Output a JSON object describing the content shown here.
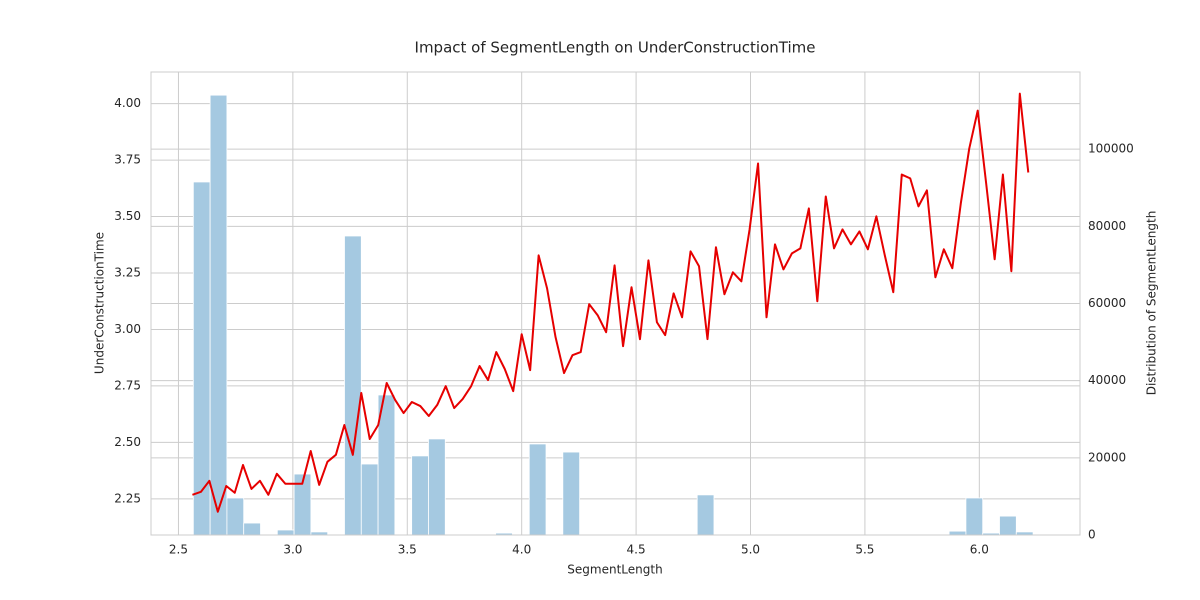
{
  "chart_data": [
    {
      "type": "line",
      "title": "Impact of SegmentLength on UnderConstructionTime",
      "x_label": "SegmentLength",
      "y_label": "UnderConstructionTime",
      "color": "#e60000",
      "grid": true,
      "xlim": [
        2.38,
        6.44
      ],
      "xticks": [
        {
          "value": 2.5,
          "label": "2.5"
        },
        {
          "value": 3.0,
          "label": "3.0"
        },
        {
          "value": 3.5,
          "label": "3.5"
        },
        {
          "value": 4.0,
          "label": "4.0"
        },
        {
          "value": 4.5,
          "label": "4.5"
        },
        {
          "value": 5.0,
          "label": "5.0"
        },
        {
          "value": 5.5,
          "label": "5.5"
        },
        {
          "value": 6.0,
          "label": "6.0"
        }
      ],
      "ylim": [
        2.09,
        4.14
      ],
      "yticks": [
        2.25,
        {
          "value": 2.5,
          "label": "2.50"
        },
        2.75,
        {
          "value": 3.0,
          "label": "3.00"
        },
        3.25,
        {
          "value": 3.5,
          "label": "3.50"
        },
        3.75,
        {
          "value": 4.0,
          "label": "4.00"
        }
      ],
      "x": [
        2.561,
        2.598,
        2.635,
        2.672,
        2.709,
        2.746,
        2.782,
        2.819,
        2.856,
        2.893,
        2.93,
        2.967,
        3.004,
        3.041,
        3.078,
        3.115,
        3.151,
        3.188,
        3.225,
        3.262,
        3.299,
        3.336,
        3.373,
        3.41,
        3.447,
        3.484,
        3.52,
        3.557,
        3.594,
        3.631,
        3.668,
        3.705,
        3.742,
        3.779,
        3.816,
        3.853,
        3.889,
        3.926,
        3.963,
        4.0,
        4.037,
        4.074,
        4.111,
        4.148,
        4.185,
        4.222,
        4.258,
        4.295,
        4.332,
        4.369,
        4.406,
        4.443,
        4.48,
        4.517,
        4.554,
        4.591,
        4.627,
        4.664,
        4.701,
        4.738,
        4.775,
        4.812,
        4.849,
        4.886,
        4.923,
        4.96,
        4.996,
        5.033,
        5.07,
        5.107,
        5.144,
        5.181,
        5.218,
        5.255,
        5.292,
        5.329,
        5.365,
        5.402,
        5.439,
        5.476,
        5.513,
        5.55,
        5.587,
        5.624,
        5.661,
        5.698,
        5.734,
        5.771,
        5.808,
        5.845,
        5.882,
        5.919,
        5.956,
        5.993,
        6.03,
        6.067,
        6.103,
        6.14,
        6.177,
        6.214
      ],
      "values": [
        2.268,
        2.281,
        2.33,
        2.193,
        2.307,
        2.277,
        2.4,
        2.294,
        2.33,
        2.268,
        2.361,
        2.317,
        2.317,
        2.317,
        2.462,
        2.312,
        2.414,
        2.445,
        2.577,
        2.445,
        2.719,
        2.515,
        2.577,
        2.763,
        2.688,
        2.63,
        2.679,
        2.661,
        2.617,
        2.666,
        2.749,
        2.652,
        2.692,
        2.749,
        2.838,
        2.776,
        2.9,
        2.825,
        2.727,
        2.979,
        2.82,
        3.328,
        3.182,
        2.966,
        2.807,
        2.886,
        2.9,
        3.112,
        3.063,
        2.988,
        3.284,
        2.926,
        3.187,
        2.957,
        3.306,
        3.032,
        2.975,
        3.16,
        3.054,
        3.346,
        3.28,
        2.957,
        3.364,
        3.156,
        3.253,
        3.213,
        3.443,
        3.735,
        3.054,
        3.377,
        3.266,
        3.337,
        3.359,
        3.536,
        3.125,
        3.589,
        3.359,
        3.443,
        3.377,
        3.434,
        3.355,
        3.501,
        3.328,
        3.165,
        3.686,
        3.669,
        3.545,
        3.616,
        3.231,
        3.355,
        3.271,
        3.558,
        3.801,
        3.969,
        3.646,
        3.311,
        3.686,
        3.258,
        4.044,
        3.695
      ]
    },
    {
      "type": "histogram",
      "y2_label": "Distribution of SegmentLength",
      "axis": "y2",
      "color": "#a5c9e1",
      "grid": true,
      "y2lim": [
        0,
        120000
      ],
      "y2ticks": [
        0,
        20000,
        40000,
        60000,
        80000,
        100000
      ],
      "bins": [
        2.565,
        2.6384,
        2.7118,
        2.7852,
        2.8586,
        2.932,
        3.0054,
        3.0788,
        3.1522,
        3.2256,
        3.299,
        3.3724,
        3.4458,
        3.5192,
        3.5926,
        3.666,
        3.7394,
        3.8128,
        3.8862,
        3.9596,
        4.033,
        4.1064,
        4.1798,
        4.2532,
        4.3266,
        4.4,
        4.4734,
        4.5468,
        4.6202,
        4.6936,
        4.767,
        4.8404,
        4.9138,
        4.9872,
        5.0606,
        5.134,
        5.2074,
        5.2808,
        5.3542,
        5.4276,
        5.501,
        5.5744,
        5.6478,
        5.7212,
        5.7946,
        5.868,
        5.9414,
        6.0148,
        6.0882,
        6.1616,
        6.235
      ],
      "counts": [
        91500,
        114000,
        9600,
        3100,
        0,
        1300,
        15800,
        800,
        0,
        77500,
        18400,
        36300,
        0,
        20500,
        24900,
        0,
        0,
        0,
        500,
        0,
        23600,
        0,
        21500,
        0,
        0,
        0,
        0,
        0,
        0,
        0,
        10400,
        0,
        0,
        0,
        0,
        0,
        0,
        0,
        0,
        0,
        0,
        0,
        0,
        0,
        0,
        1000,
        9600,
        500,
        4900,
        800
      ]
    }
  ]
}
